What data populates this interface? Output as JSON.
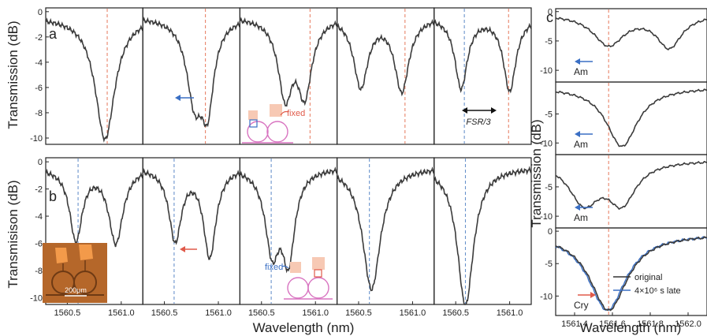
{
  "chart_data": [
    {
      "id": "a",
      "type": "line",
      "panel_label": "a",
      "ylabel": "Transmission (dB)",
      "ylim": [
        -10.5,
        0.3
      ],
      "yticks": [
        "0",
        "-2",
        "-4",
        "-6",
        "-8",
        "-10"
      ],
      "xlim": [
        1560.3,
        1561.2
      ],
      "subpanels": [
        {
          "dips": [
            {
              "center": 1560.85,
              "depth": 9.7,
              "width": 0.11
            }
          ],
          "marker_lines": [
            {
              "x": 1560.87,
              "color": "#e8846a"
            }
          ]
        },
        {
          "dips": [
            {
              "center": 1560.78,
              "depth": 6.2,
              "width": 0.09
            },
            {
              "center": 1560.9,
              "depth": 6.3,
              "width": 0.07
            }
          ],
          "marker_lines": [
            {
              "x": 1560.88,
              "color": "#e8846a"
            }
          ]
        },
        {
          "dips": [
            {
              "center": 1560.72,
              "depth": 6.0,
              "width": 0.08
            },
            {
              "center": 1560.9,
              "depth": 5.8,
              "width": 0.08
            }
          ],
          "marker_lines": [
            {
              "x": 1560.95,
              "color": "#e8846a"
            }
          ]
        },
        {
          "dips": [
            {
              "center": 1560.52,
              "depth": 5.5,
              "width": 0.08
            },
            {
              "center": 1560.9,
              "depth": 5.8,
              "width": 0.08
            }
          ],
          "marker_lines": [
            {
              "x": 1560.93,
              "color": "#e8846a"
            }
          ]
        },
        {
          "dips": [
            {
              "center": 1560.55,
              "depth": 5.6,
              "width": 0.07
            },
            {
              "center": 1561.0,
              "depth": 5.8,
              "width": 0.07
            }
          ],
          "marker_lines": [
            {
              "x": 1560.58,
              "color": "#6a93cc"
            },
            {
              "x": 1560.99,
              "color": "#e8846a"
            }
          ]
        }
      ],
      "annotations": [
        "fixed",
        "FSR/3"
      ]
    },
    {
      "id": "b",
      "type": "line",
      "panel_label": "b",
      "ylabel": "Transmisison (dB)",
      "ylim": [
        -10.5,
        0.3
      ],
      "yticks": [
        "0",
        "-2",
        "-4",
        "-6",
        "-8",
        "-10"
      ],
      "xlim": [
        1560.3,
        1561.2
      ],
      "xticks": [
        "1560.5",
        "1561.0"
      ],
      "xlabel": "Wavelength (nm)",
      "subpanels": [
        {
          "dips": [
            {
              "center": 1560.58,
              "depth": 5.3,
              "width": 0.07
            },
            {
              "center": 1560.95,
              "depth": 5.5,
              "width": 0.08
            }
          ],
          "marker_lines": [
            {
              "x": 1560.6,
              "color": "#6a93cc"
            }
          ]
        },
        {
          "dips": [
            {
              "center": 1560.6,
              "depth": 5.3,
              "width": 0.07
            },
            {
              "center": 1560.92,
              "depth": 6.5,
              "width": 0.07
            }
          ],
          "marker_lines": [
            {
              "x": 1560.59,
              "color": "#6a93cc"
            }
          ]
        },
        {
          "dips": [
            {
              "center": 1560.6,
              "depth": 5.9,
              "width": 0.08
            },
            {
              "center": 1560.75,
              "depth": 6.3,
              "width": 0.07
            }
          ],
          "marker_lines": [
            {
              "x": 1560.59,
              "color": "#6a93cc"
            }
          ]
        },
        {
          "dips": [
            {
              "center": 1560.62,
              "depth": 9.0,
              "width": 0.1
            }
          ],
          "marker_lines": [
            {
              "x": 1560.6,
              "color": "#6a93cc"
            }
          ]
        },
        {
          "dips": [
            {
              "center": 1560.59,
              "depth": 10.2,
              "width": 0.09
            }
          ],
          "marker_lines": [
            {
              "x": 1560.59,
              "color": "#6a93cc"
            }
          ]
        }
      ],
      "annotations": [
        "fixed",
        "200μm"
      ]
    },
    {
      "id": "c",
      "type": "line",
      "panel_label": "c",
      "ylabel": "Transmission (dB)",
      "xlabel": "Wavelength (nm)",
      "xlim": [
        1561.3,
        1562.1
      ],
      "xticks": [
        "1561.4",
        "1561.6",
        "1561.8",
        "1562.0"
      ],
      "subpanels": [
        {
          "ylim": [
            -12,
            0.5
          ],
          "yticks": [
            "0",
            "-5",
            "-10"
          ],
          "label": "Am",
          "dips": [
            {
              "center": 1561.58,
              "depth": 5.2,
              "width": 0.1
            },
            {
              "center": 1561.9,
              "depth": 5.5,
              "width": 0.08
            }
          ],
          "marker_lines": [
            {
              "x": 1561.58,
              "color": "#e8846a"
            }
          ]
        },
        {
          "ylim": [
            -12,
            0.5
          ],
          "yticks": [
            "-5",
            "-10"
          ],
          "label": "Am",
          "dips": [
            {
              "center": 1561.65,
              "depth": 10.2,
              "width": 0.1
            }
          ],
          "marker_lines": [
            {
              "x": 1561.58,
              "color": "#e8846a"
            }
          ]
        },
        {
          "ylim": [
            -12,
            0.5
          ],
          "yticks": [
            "-5",
            "-10"
          ],
          "label": "Am",
          "dips": [
            {
              "center": 1561.45,
              "depth": 7.0,
              "width": 0.1
            },
            {
              "center": 1561.65,
              "depth": 6.8,
              "width": 0.09
            }
          ],
          "marker_lines": [
            {
              "x": 1561.58,
              "color": "#e8846a"
            }
          ]
        },
        {
          "ylim": [
            -13,
            0.5
          ],
          "yticks": [
            "0",
            "-5",
            "-10"
          ],
          "label": "Cry",
          "dips": [
            {
              "center": 1561.58,
              "depth": 11.8,
              "width": 0.12
            }
          ],
          "marker_lines": [
            {
              "x": 1561.58,
              "color": "#e8846a"
            }
          ]
        }
      ],
      "series": [
        {
          "name": "original",
          "color": "#333333"
        },
        {
          "name": "4×10⁶ s late",
          "color": "#3a6fc4"
        }
      ]
    }
  ]
}
